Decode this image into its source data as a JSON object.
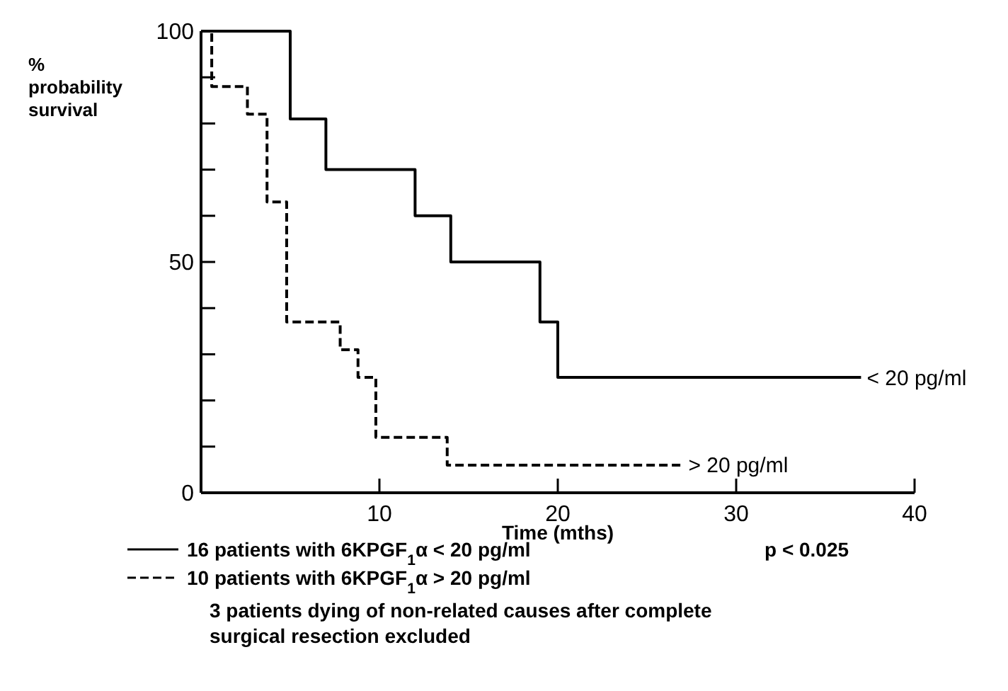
{
  "chart_data": {
    "type": "step",
    "ylabel": "% probability survival",
    "xlabel": "Time  (mths)",
    "xlim": [
      0,
      40
    ],
    "ylim": [
      0,
      100
    ],
    "xticks": [
      {
        "value": 0,
        "label": null
      },
      10,
      20,
      30,
      40
    ],
    "yticks": [
      0,
      {
        "value": 10,
        "label": null
      },
      {
        "value": 20,
        "label": null
      },
      {
        "value": 30,
        "label": null
      },
      {
        "value": 40,
        "label": null
      },
      50,
      {
        "value": 60,
        "label": null
      },
      {
        "value": 70,
        "label": null
      },
      {
        "value": 80,
        "label": null
      },
      {
        "value": 90,
        "label": null
      },
      100
    ],
    "grid": false,
    "legend": "bottom",
    "series": [
      {
        "name": "16 patients with 6KPGF$_{1}$α   < 20 pg/ml",
        "color": "#000000",
        "line_style": "solid",
        "x": [
          0,
          5,
          7,
          12,
          14,
          19,
          20,
          37
        ],
        "values": [
          100,
          81,
          70,
          60,
          50,
          37,
          25,
          25
        ]
      },
      {
        "name": "10 patients with 6KPGF$_{1}$α   > 20 pg/ml",
        "color": "#000000",
        "line_style": "dashed",
        "x": [
          0,
          0.6,
          2.6,
          3.7,
          4.8,
          7.8,
          8.8,
          9.8,
          13.8,
          27
        ],
        "values": [
          100,
          88,
          82,
          63,
          37,
          31,
          25,
          12,
          6,
          6
        ]
      }
    ],
    "annotations": [
      {
        "text": "< 20 pg/ml",
        "x": 37,
        "y": 25
      },
      {
        "text": "> 20 pg/ml",
        "x": 27,
        "y": 6
      },
      "p  < 0.025",
      "3 patients dying of non-related causes after complete surgical resection excluded"
    ]
  }
}
